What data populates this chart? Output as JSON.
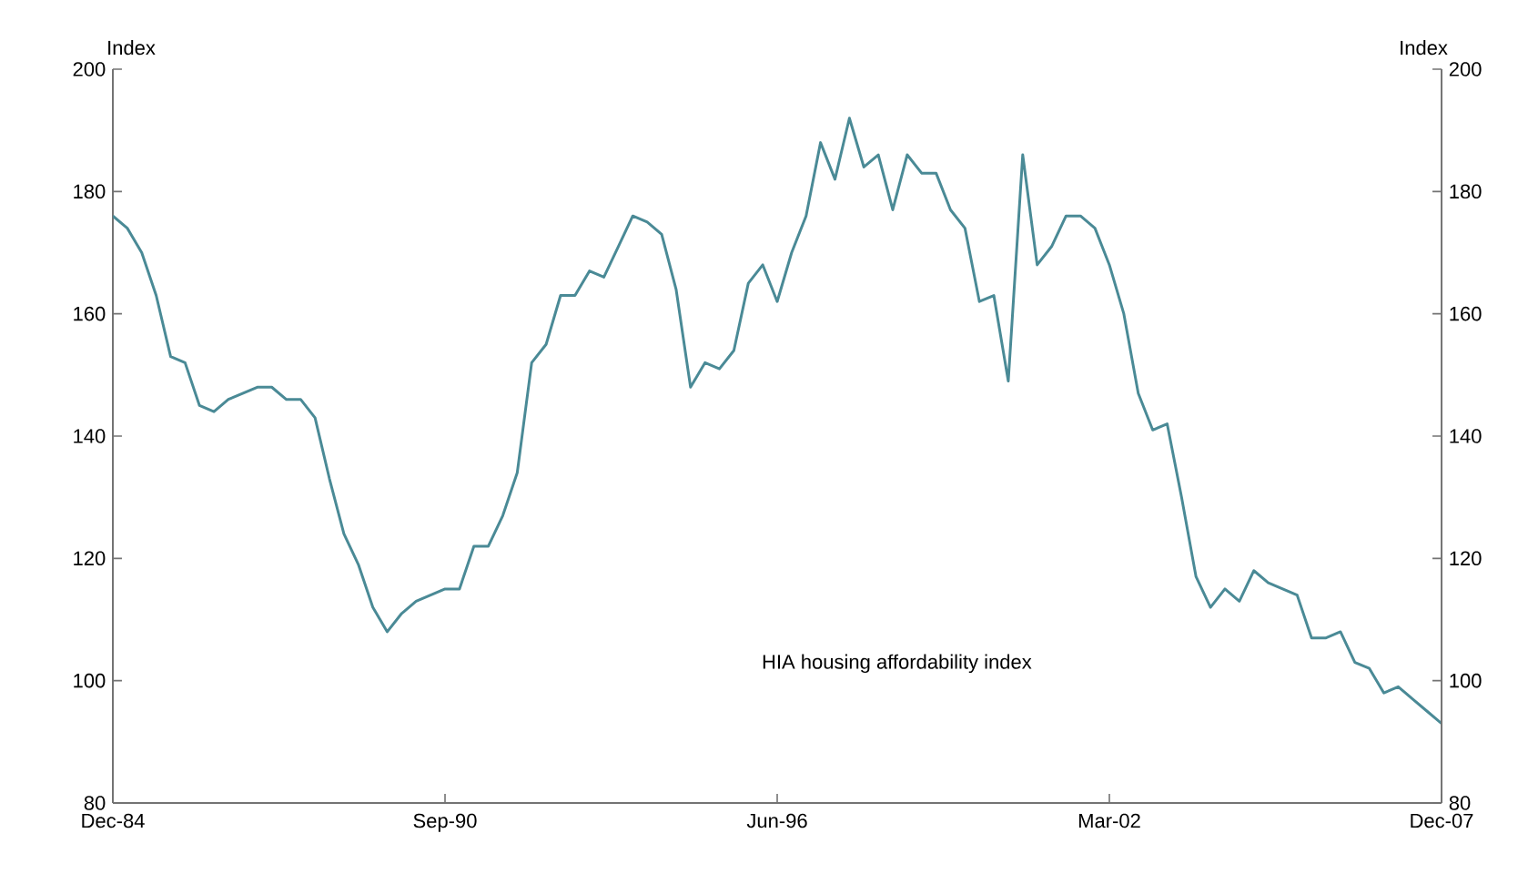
{
  "chart_data": {
    "type": "line",
    "ylabel": "Index",
    "y2label": "Index",
    "x": [
      "1984-12",
      "1985-03",
      "1985-06",
      "1985-09",
      "1985-12",
      "1986-03",
      "1986-06",
      "1986-09",
      "1986-12",
      "1987-03",
      "1987-06",
      "1987-09",
      "1987-12",
      "1988-03",
      "1988-06",
      "1988-09",
      "1988-12",
      "1989-03",
      "1989-06",
      "1989-09",
      "1989-12",
      "1990-03",
      "1990-06",
      "1990-09",
      "1990-12",
      "1991-03",
      "1991-06",
      "1991-09",
      "1991-12",
      "1992-03",
      "1992-06",
      "1992-09",
      "1992-12",
      "1993-03",
      "1993-06",
      "1993-09",
      "1993-12",
      "1994-03",
      "1994-06",
      "1994-09",
      "1994-12",
      "1995-03",
      "1995-06",
      "1995-09",
      "1995-12",
      "1996-03",
      "1996-06",
      "1996-09",
      "1996-12",
      "1997-03",
      "1997-06",
      "1997-09",
      "1997-12",
      "1998-03",
      "1998-06",
      "1998-09",
      "1998-12",
      "1999-03",
      "1999-06",
      "1999-09",
      "1999-12",
      "2000-03",
      "2000-06",
      "2000-09",
      "2000-12",
      "2001-03",
      "2001-06",
      "2001-09",
      "2001-12",
      "2002-03",
      "2002-06",
      "2002-09",
      "2002-12",
      "2003-03",
      "2003-06",
      "2003-09",
      "2003-12",
      "2004-03",
      "2004-06",
      "2004-09",
      "2004-12",
      "2005-03",
      "2005-06",
      "2005-09",
      "2005-12",
      "2006-03",
      "2006-06",
      "2006-09",
      "2006-12",
      "2007-03",
      "2007-06",
      "2007-09",
      "2007-12"
    ],
    "series": [
      {
        "name": "HIA housing affordability index",
        "color": "#4a8a96",
        "values": [
          176,
          174,
          170,
          163,
          153,
          152,
          145,
          144,
          146,
          147,
          148,
          148,
          146,
          146,
          143,
          133,
          124,
          119,
          112,
          108,
          111,
          113,
          114,
          115,
          115,
          122,
          122,
          127,
          134,
          152,
          155,
          163,
          163,
          167,
          166,
          171,
          176,
          175,
          173,
          164,
          148,
          152,
          151,
          154,
          165,
          168,
          162,
          170,
          176,
          188,
          182,
          192,
          184,
          186,
          177,
          186,
          183,
          183,
          177,
          174,
          162,
          163,
          149,
          186,
          168,
          171,
          176,
          176,
          174,
          168,
          160,
          147,
          141,
          142,
          130,
          117,
          112,
          115,
          113,
          118,
          116,
          115,
          114,
          107,
          107,
          108,
          103,
          102,
          98,
          99,
          97,
          95,
          93
        ]
      }
    ],
    "xlim": [
      "1984-12",
      "2007-12"
    ],
    "xticks": [
      {
        "value": "1984-12",
        "label": "Dec-84"
      },
      {
        "value": "1990-09",
        "label": "Sep-90"
      },
      {
        "value": "1996-06",
        "label": "Jun-96"
      },
      {
        "value": "2002-03",
        "label": "Mar-02"
      },
      {
        "value": "2007-12",
        "label": "Dec-07"
      }
    ],
    "ylim": [
      80,
      200
    ],
    "yticks": [
      80,
      100,
      120,
      140,
      160,
      180,
      200
    ],
    "y2lim": [
      80,
      200
    ],
    "y2ticks": [
      80,
      100,
      120,
      140,
      160,
      180,
      200
    ],
    "grid": false,
    "legend": false,
    "marker": "none",
    "line_style": "solid"
  }
}
